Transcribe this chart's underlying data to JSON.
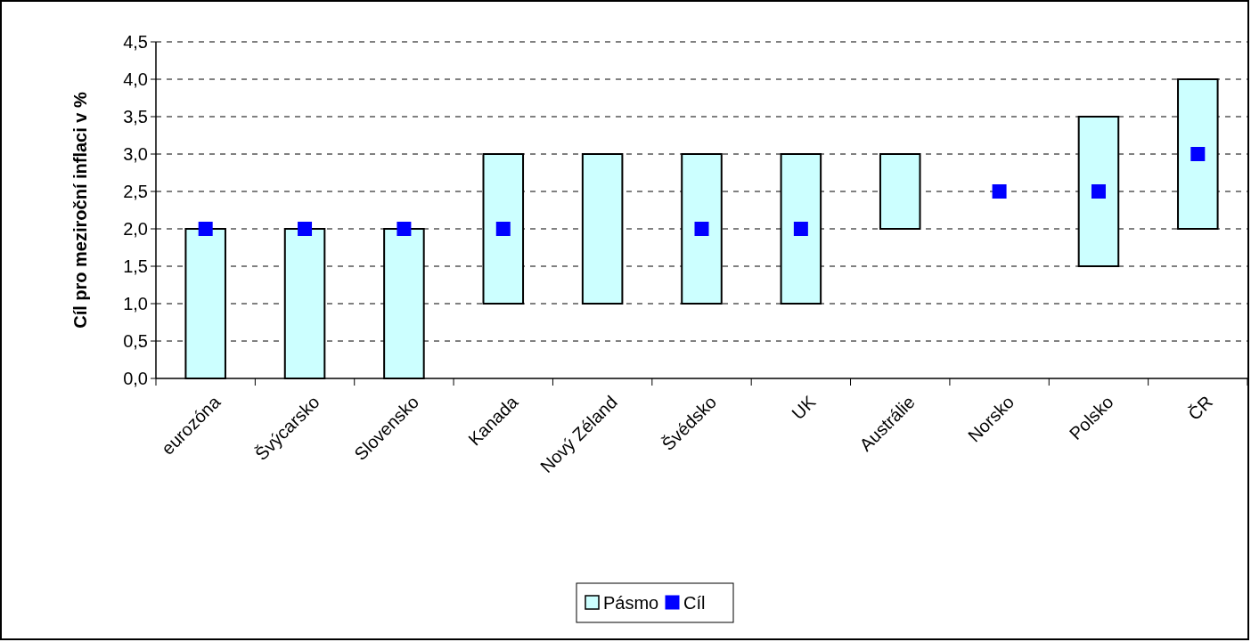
{
  "chart_data": {
    "type": "bar",
    "ylabel": "Cíl pro meziroční inflaci v %",
    "categories": [
      "eurozóna",
      "Švýcarsko",
      "Slovensko",
      "Kanada",
      "Nový Zéland",
      "Švédsko",
      "UK",
      "Austrálie",
      "Norsko",
      "Polsko",
      "ČR"
    ],
    "series": [
      {
        "name": "Pásmo",
        "color": "#ccffff",
        "base": [
          0,
          0,
          0,
          1,
          1,
          1,
          1,
          2,
          null,
          1.5,
          2
        ],
        "values": [
          2,
          2,
          2,
          2,
          2,
          2,
          2,
          1,
          null,
          2,
          2
        ]
      },
      {
        "name": "Cíl",
        "type": "scatter",
        "color": "#0000ff",
        "marker": "square",
        "values": [
          2,
          2,
          2,
          2,
          null,
          2,
          2,
          null,
          2.5,
          2.5,
          3
        ]
      }
    ],
    "ylim": [
      0,
      4.5
    ],
    "yticks": [
      {
        "value": 0,
        "label": "0,0"
      },
      {
        "value": 0.5,
        "label": "0,5"
      },
      {
        "value": 1,
        "label": "1,0"
      },
      {
        "value": 1.5,
        "label": "1,5"
      },
      {
        "value": 2,
        "label": "2,0"
      },
      {
        "value": 2.5,
        "label": "2,5"
      },
      {
        "value": 3,
        "label": "3,0"
      },
      {
        "value": 3.5,
        "label": "3,5"
      },
      {
        "value": 4,
        "label": "4,0"
      },
      {
        "value": 4.5,
        "label": "4,5"
      }
    ],
    "grid": "y",
    "legend": "bottom"
  }
}
